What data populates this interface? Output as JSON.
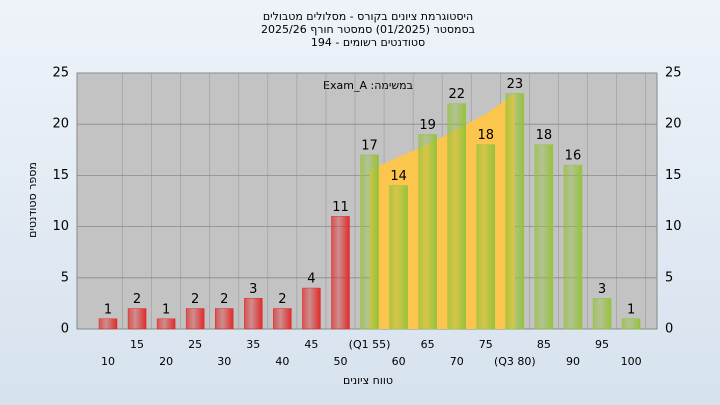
{
  "chart_data": {
    "type": "bar",
    "title": [
      "היסטוגרמת ציונים בקורס - מסלולים מטבולים",
      "בסמסטר  (01/2025)  סמסטר חורף 2025/26",
      "סטודנטים רשומים - 194"
    ],
    "annotation": "Exam_A :במשימה",
    "x_label": "טווח ציונים",
    "y_label": "מספר סטודנטים",
    "categories": [
      "10",
      "15",
      "20",
      "25",
      "30",
      "35",
      "40",
      "45",
      "50",
      "(Q1 55)",
      "60",
      "65",
      "70",
      "75",
      "(Q3 80)",
      "85",
      "90",
      "95",
      "100"
    ],
    "values": [
      1,
      2,
      1,
      2,
      2,
      3,
      2,
      4,
      11,
      17,
      14,
      19,
      22,
      18,
      23,
      18,
      16,
      3,
      1
    ],
    "colors": [
      "#e02b2b",
      "#e02b2b",
      "#e02b2b",
      "#e02b2b",
      "#e02b2b",
      "#e02b2b",
      "#e02b2b",
      "#e02b2b",
      "#e02b2b",
      "#96c23c",
      "#96c23c",
      "#96c23c",
      "#96c23c",
      "#96c23c",
      "#96c23c",
      "#96c23c",
      "#96c23c",
      "#96c23c",
      "#96c23c"
    ],
    "shade": {
      "color": "#fcc64e",
      "values": [
        null,
        null,
        null,
        null,
        null,
        null,
        null,
        null,
        null,
        15.5,
        16.8,
        18,
        19.5,
        21,
        23,
        null,
        null,
        null,
        null
      ]
    },
    "ylim": [
      0,
      25
    ],
    "yticks": [
      0,
      5,
      10,
      15,
      20,
      25
    ],
    "grid": true
  }
}
